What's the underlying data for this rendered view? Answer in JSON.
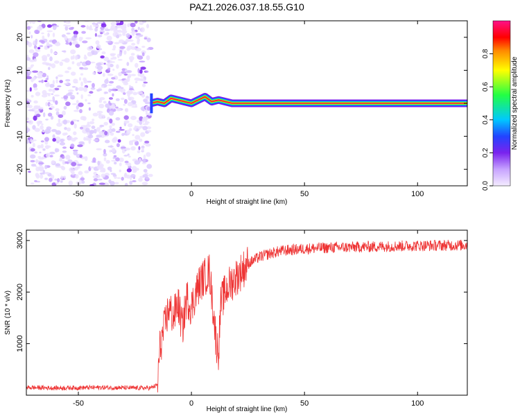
{
  "title": "PAZ1.2026.037.18.55.G10",
  "chart_data": [
    {
      "type": "heatmap",
      "xlabel": "Height of straight line (km)",
      "ylabel": "Frequency (Hz)",
      "xlim": [
        -73,
        122
      ],
      "ylim": [
        -25,
        25
      ],
      "xticks": [
        -50,
        0,
        50,
        100
      ],
      "yticks": [
        -20,
        -10,
        0,
        10,
        20
      ],
      "noise_region_x": [
        -73,
        -18
      ],
      "signal_start_x": -18,
      "signal_center_freq_track": [
        {
          "x": -18,
          "y": 0.0
        },
        {
          "x": -15,
          "y": 0.5
        },
        {
          "x": -12,
          "y": 0.0
        },
        {
          "x": -9,
          "y": 1.5
        },
        {
          "x": -6,
          "y": 1.0
        },
        {
          "x": -3,
          "y": 0.5
        },
        {
          "x": 0,
          "y": 0.0
        },
        {
          "x": 3,
          "y": 1.0
        },
        {
          "x": 6,
          "y": 2.0
        },
        {
          "x": 9,
          "y": 0.5
        },
        {
          "x": 12,
          "y": 1.0
        },
        {
          "x": 15,
          "y": 0.5
        },
        {
          "x": 18,
          "y": 0.0
        },
        {
          "x": 122,
          "y": 0.0
        }
      ],
      "colorbar": {
        "label": "Normalized spectral amplitude",
        "range": [
          0,
          1
        ],
        "ticks": [
          "0.0",
          "0.2",
          "0.4",
          "0.6",
          "0.8"
        ]
      },
      "colors": {
        "low": "#f0e6ff",
        "mid": "#7722ee",
        "line": "#ee1144"
      }
    },
    {
      "type": "line",
      "xlabel": "Height of straight line (km)",
      "ylabel": "SNR (10 * v/v)",
      "xlim": [
        -73,
        122
      ],
      "ylim": [
        0,
        3200
      ],
      "xticks": [
        -50,
        0,
        50,
        100
      ],
      "yticks": [
        1000,
        2000,
        3000
      ],
      "series": [
        {
          "name": "SNR",
          "color": "#ee3333",
          "points": [
            {
              "x": -73,
              "y": 150
            },
            {
              "x": -60,
              "y": 140
            },
            {
              "x": -40,
              "y": 150
            },
            {
              "x": -25,
              "y": 140
            },
            {
              "x": -18,
              "y": 140
            },
            {
              "x": -15,
              "y": 200
            },
            {
              "x": -14,
              "y": 900
            },
            {
              "x": -12,
              "y": 1300
            },
            {
              "x": -10,
              "y": 1700
            },
            {
              "x": -8,
              "y": 1500
            },
            {
              "x": -6,
              "y": 1800
            },
            {
              "x": -4,
              "y": 1300
            },
            {
              "x": -2,
              "y": 1900
            },
            {
              "x": 0,
              "y": 1700
            },
            {
              "x": 2,
              "y": 2000
            },
            {
              "x": 4,
              "y": 2200
            },
            {
              "x": 6,
              "y": 2300
            },
            {
              "x": 8,
              "y": 2400
            },
            {
              "x": 10,
              "y": 1500
            },
            {
              "x": 11,
              "y": 1000
            },
            {
              "x": 12,
              "y": 850
            },
            {
              "x": 13,
              "y": 1800
            },
            {
              "x": 16,
              "y": 2100
            },
            {
              "x": 20,
              "y": 2300
            },
            {
              "x": 25,
              "y": 2550
            },
            {
              "x": 30,
              "y": 2680
            },
            {
              "x": 35,
              "y": 2750
            },
            {
              "x": 40,
              "y": 2800
            },
            {
              "x": 50,
              "y": 2840
            },
            {
              "x": 60,
              "y": 2860
            },
            {
              "x": 80,
              "y": 2880
            },
            {
              "x": 100,
              "y": 2900
            },
            {
              "x": 122,
              "y": 2910
            }
          ]
        }
      ]
    }
  ]
}
